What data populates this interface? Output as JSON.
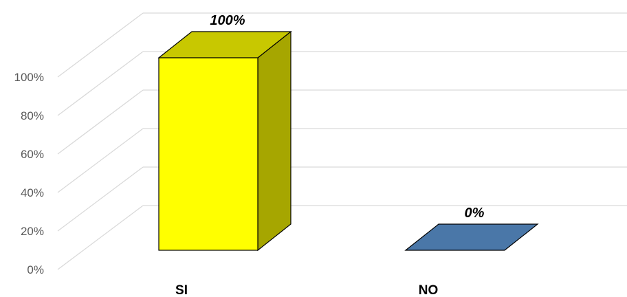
{
  "chart_data": {
    "type": "bar",
    "style": "3d-column",
    "categories": [
      "SI",
      "NO"
    ],
    "values": [
      100,
      0
    ],
    "data_labels": [
      "100%",
      "0%"
    ],
    "y_ticks": [
      "0%",
      "20%",
      "40%",
      "60%",
      "80%",
      "100%"
    ],
    "ylim": [
      0,
      100
    ],
    "grid": true,
    "legend": "none",
    "colors": {
      "SI": {
        "front": "#ffff00",
        "top": "#c8c800",
        "side": "#a6a600"
      },
      "NO": {
        "front": "#4a77a8",
        "top": "#4a77a8",
        "side": "#3b6390"
      },
      "grid": "#d9d9d9",
      "outline": "#000000"
    }
  }
}
